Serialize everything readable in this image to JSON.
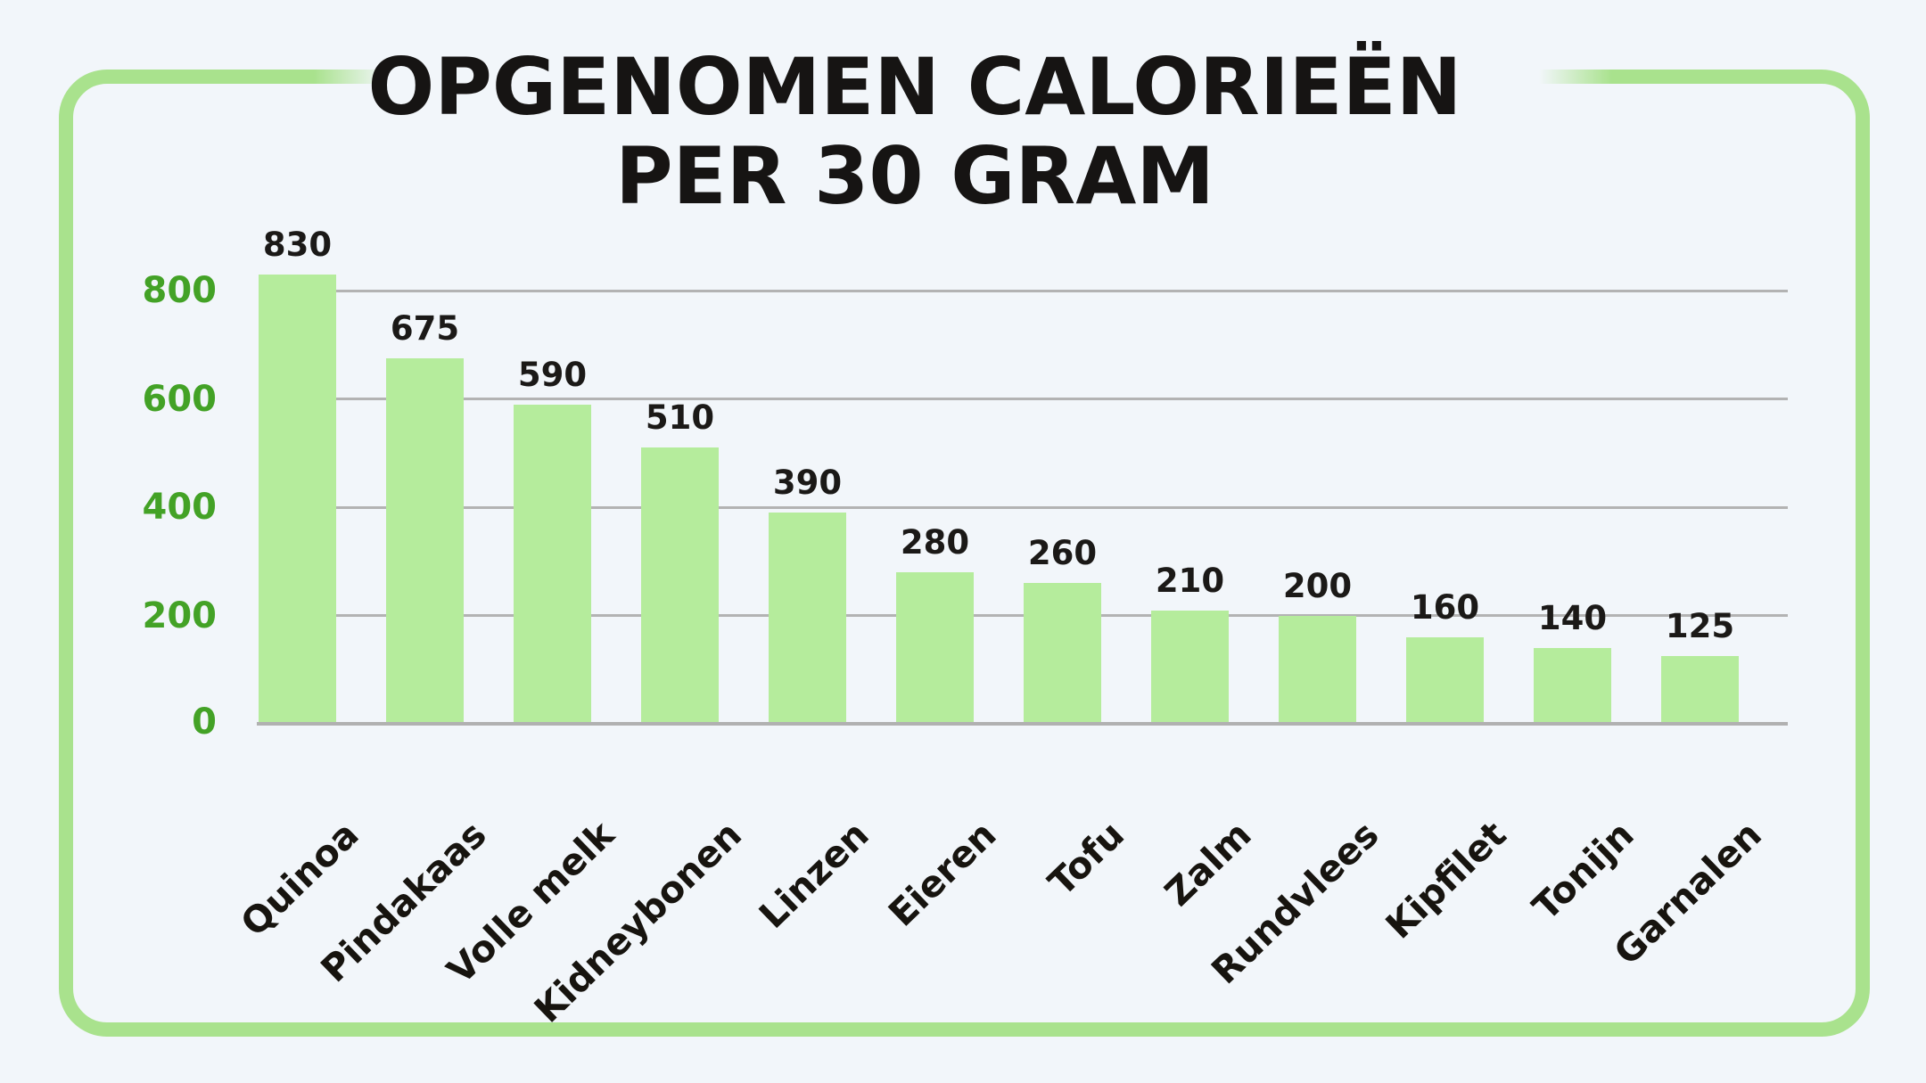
{
  "title": {
    "line1": "OPGENOMEN CALORIEËN",
    "line2": "PER 30 GRAM"
  },
  "chart_data": {
    "type": "bar",
    "title": "OPGENOMEN CALORIEËN PER 30 GRAM",
    "categories": [
      "Quinoa",
      "Pindakaas",
      "Volle melk",
      "Kidneybonen",
      "Linzen",
      "Eieren",
      "Tofu",
      "Zalm",
      "Rundvlees",
      "Kipfilet",
      "Tonijn",
      "Garnalen"
    ],
    "values": [
      830,
      675,
      590,
      510,
      390,
      280,
      260,
      210,
      200,
      160,
      140,
      125
    ],
    "value_labels": [
      "830",
      "675",
      "590",
      "510",
      "390",
      "280",
      "260",
      "210",
      "200",
      "160",
      "140",
      "125"
    ],
    "xlabel": "",
    "ylabel": "",
    "yticks": [
      0,
      200,
      400,
      600,
      800
    ],
    "ylim": [
      0,
      870
    ],
    "grid": true,
    "legend_position": "none",
    "orientation": "vertical"
  },
  "colors": {
    "background": "#f2f6fa",
    "bar_fill": "#b5ec9c",
    "frame_border": "#a9e28d",
    "axis_tick_green": "#43a226",
    "gridline_gray": "#b3b3b3",
    "text_black": "#161413"
  }
}
